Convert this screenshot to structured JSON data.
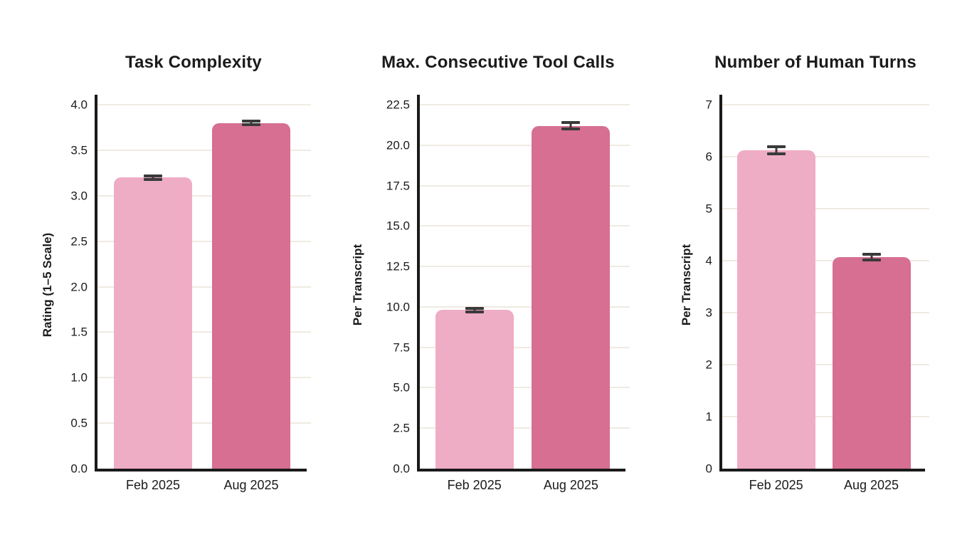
{
  "page": {
    "background": "#ffffff"
  },
  "palette": {
    "bar_feb_2025": "#EFACC5",
    "bar_aug_2025": "#D66F92",
    "error_bar": "#3A3A3A",
    "grid_line": "#EFEBE1",
    "axis": "#1A1A1A",
    "text": "#1B1B1B"
  },
  "chart_data": [
    {
      "type": "bar",
      "title": "Task Complexity",
      "xlabel": "",
      "ylabel": "Rating (1–5 Scale)",
      "categories": [
        "Feb 2025",
        "Aug 2025"
      ],
      "values": [
        3.2,
        3.8
      ],
      "errors": [
        0.02,
        0.02
      ],
      "ylim": [
        0,
        4.0
      ],
      "ytick_step": 0.5,
      "ytick_labels": [
        "0.0",
        "0.5",
        "1.0",
        "1.5",
        "2.0",
        "2.5",
        "3.0",
        "3.5",
        "4.0"
      ],
      "grid": true,
      "legend": "none",
      "bar_colors": [
        "#EFACC5",
        "#D66F92"
      ]
    },
    {
      "type": "bar",
      "title": "Max. Consecutive Tool Calls",
      "xlabel": "",
      "ylabel": "Per Transcript",
      "categories": [
        "Feb 2025",
        "Aug 2025"
      ],
      "values": [
        9.8,
        21.2
      ],
      "errors": [
        0.1,
        0.2
      ],
      "ylim": [
        0,
        22.5
      ],
      "ytick_step": 2.5,
      "ytick_labels": [
        "0.0",
        "2.5",
        "5.0",
        "7.5",
        "10.0",
        "12.5",
        "15.0",
        "17.5",
        "20.0",
        "22.5"
      ],
      "grid": true,
      "legend": "none",
      "bar_colors": [
        "#EFACC5",
        "#D66F92"
      ]
    },
    {
      "type": "bar",
      "title": "Number of Human Turns",
      "xlabel": "",
      "ylabel": "Per Transcript",
      "categories": [
        "Feb 2025",
        "Aug 2025"
      ],
      "values": [
        6.12,
        4.07
      ],
      "errors": [
        0.07,
        0.06
      ],
      "ylim": [
        0,
        7
      ],
      "ytick_step": 1,
      "ytick_labels": [
        "0",
        "1",
        "2",
        "3",
        "4",
        "5",
        "6",
        "7"
      ],
      "grid": true,
      "legend": "none",
      "bar_colors": [
        "#EFACC5",
        "#D66F92"
      ]
    }
  ]
}
